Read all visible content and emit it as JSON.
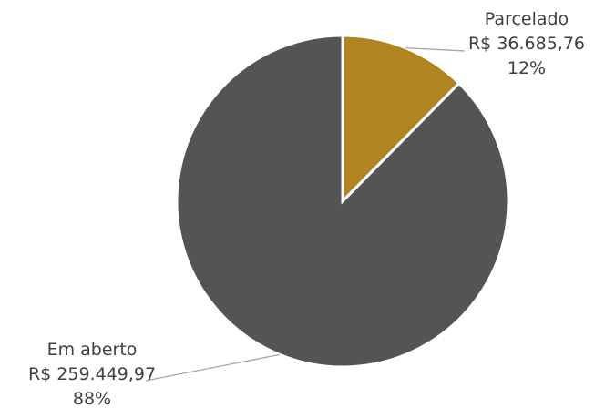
{
  "chart_data": {
    "type": "pie",
    "slices": [
      {
        "name": "Parcelado",
        "amount_label": "R$ 36.685,76",
        "percent_label": "12%",
        "value": 36685.76,
        "color": "#B08420"
      },
      {
        "name": "Em aberto",
        "amount_label": "R$ 259.449,97",
        "percent_label": "88%",
        "value": 259449.97,
        "color": "#545454"
      }
    ],
    "start_angle_deg": 0,
    "direction": "clockwise",
    "label_line_color": "#A6A6A6",
    "slice_border_color": "#FFFFFF"
  }
}
